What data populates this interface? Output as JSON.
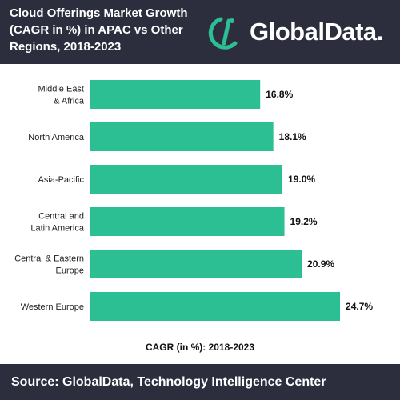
{
  "header": {
    "title": "Cloud Offerings Market Growth\n(CAGR in %) in APAC vs Other\nRegions, 2018-2023",
    "logo_text": "GlobalData.",
    "logo_icon": "globaldata-logo-icon"
  },
  "footer": {
    "source": "Source: GlobalData, Technology Intelligence Center"
  },
  "colors": {
    "header_bg": "#2c2e3e",
    "bar": "#2dbf94",
    "logo_accent": "#2dbf94"
  },
  "chart_data": {
    "type": "bar",
    "orientation": "horizontal",
    "categories": [
      [
        "Middle East",
        "& Africa"
      ],
      [
        "North America"
      ],
      [
        "Asia-Pacific"
      ],
      [
        "Central and",
        "Latin America"
      ],
      [
        "Central & Eastern",
        "Europe"
      ],
      [
        "Western Europe"
      ]
    ],
    "values": [
      16.8,
      18.1,
      19.0,
      19.2,
      20.9,
      24.7
    ],
    "value_labels": [
      "16.8%",
      "18.1%",
      "19.0%",
      "19.2%",
      "20.9%",
      "24.7%"
    ],
    "xlabel": "CAGR (in %): 2018-2023",
    "xlim": [
      0,
      30
    ],
    "grid": false,
    "legend": false
  }
}
